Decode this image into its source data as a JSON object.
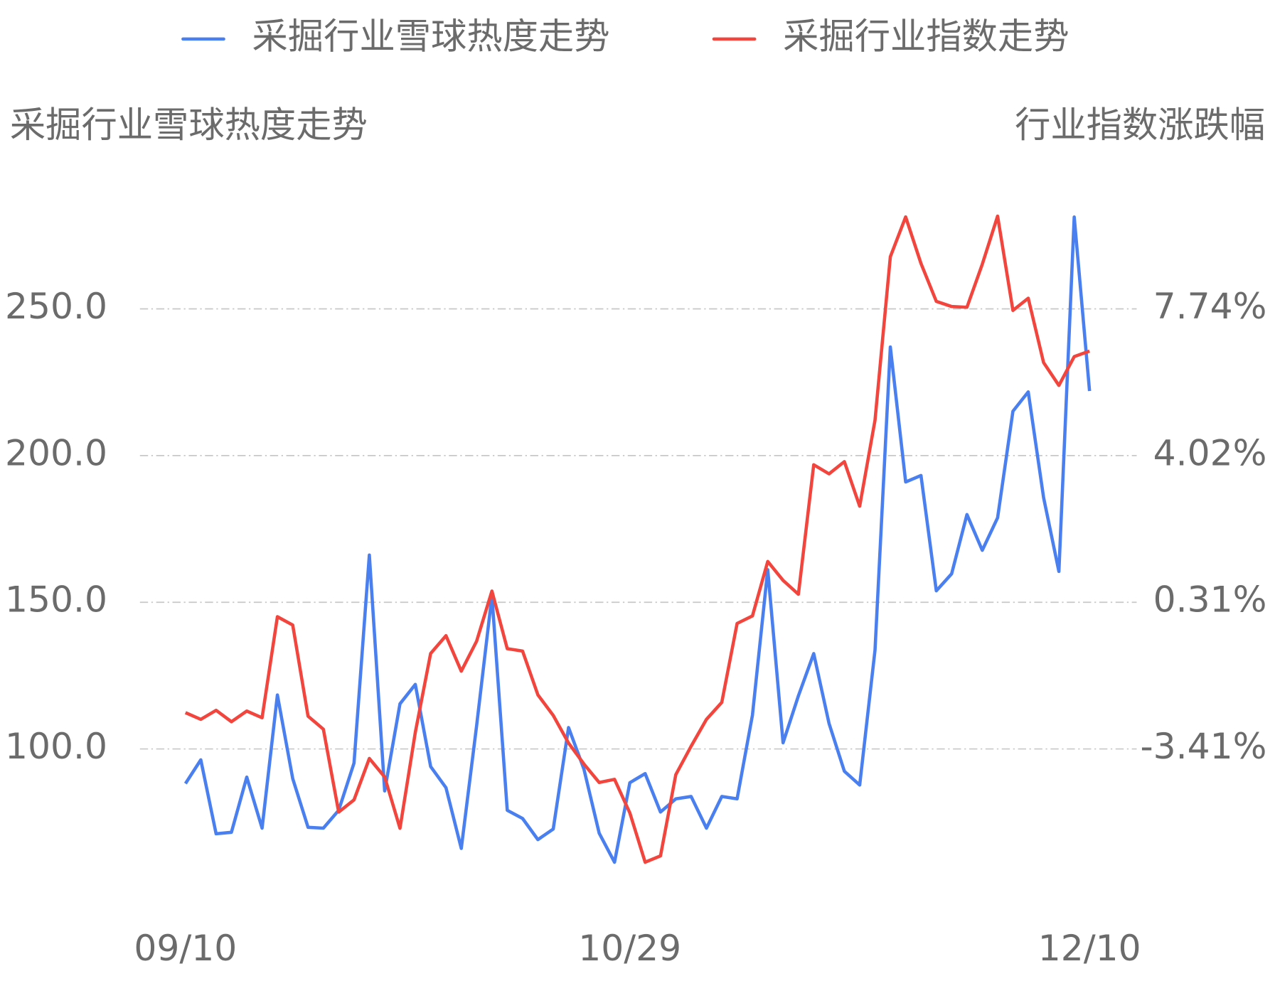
{
  "chart_data": {
    "type": "line",
    "ylabel": "采掘行业雪球热度走势",
    "y2label": "行业指数涨跌幅",
    "categories": [
      "09/10",
      null,
      null,
      null,
      null,
      null,
      null,
      null,
      null,
      null,
      null,
      null,
      null,
      null,
      null,
      null,
      null,
      null,
      null,
      null,
      null,
      null,
      null,
      null,
      null,
      null,
      null,
      null,
      null,
      "10/29",
      null,
      null,
      null,
      null,
      null,
      null,
      null,
      null,
      null,
      null,
      null,
      null,
      null,
      null,
      null,
      null,
      null,
      null,
      null,
      null,
      null,
      null,
      null,
      null,
      null,
      null,
      null,
      null,
      null,
      "12/10"
    ],
    "series": [
      {
        "name": "采掘行业雪球热度走势",
        "color": "#4a7ff0",
        "axis": "y",
        "values": [
          88.2,
          96.3,
          71.1,
          71.6,
          90.4,
          73.0,
          118.4,
          89.9,
          73.3,
          73.0,
          79.1,
          95.2,
          166.1,
          85.7,
          115.4,
          122.0,
          94.0,
          86.8,
          66.1,
          107.9,
          152.2,
          79.1,
          76.3,
          69.1,
          72.7,
          107.3,
          93.2,
          71.3,
          61.4,
          88.5,
          91.6,
          78.5,
          83.0,
          83.8,
          73.0,
          83.8,
          83.0,
          111.5,
          161.1,
          102.1,
          118.1,
          132.5,
          108.7,
          92.4,
          87.7,
          133.7,
          237.0,
          191.0,
          193.2,
          153.9,
          159.7,
          179.9,
          167.7,
          178.8,
          215.1,
          221.7,
          185.7,
          160.5,
          281.3,
          222.0
        ]
      },
      {
        "name": "采掘行业指数走势",
        "color": "#f2453d",
        "axis": "y2",
        "values": [
          -2.49,
          -2.66,
          -2.43,
          -2.72,
          -2.45,
          -2.62,
          -0.06,
          -0.27,
          -2.58,
          -2.91,
          -5.01,
          -4.7,
          -3.65,
          -4.12,
          -5.42,
          -2.99,
          -0.99,
          -0.54,
          -1.44,
          -0.68,
          0.59,
          -0.87,
          -0.93,
          -2.04,
          -2.56,
          -3.26,
          -3.79,
          -4.26,
          -4.18,
          -5.03,
          -6.28,
          -6.12,
          -4.06,
          -3.34,
          -2.66,
          -2.23,
          -0.23,
          -0.04,
          1.34,
          0.86,
          0.51,
          3.79,
          3.56,
          3.87,
          2.74,
          4.92,
          9.06,
          10.07,
          8.89,
          7.93,
          7.8,
          7.78,
          8.87,
          10.09,
          7.7,
          8.01,
          6.38,
          5.8,
          6.53,
          6.67
        ]
      }
    ],
    "ylim": [
      50,
      300
    ],
    "yticks": [
      {
        "value": 100,
        "label": "100.0"
      },
      {
        "value": 150,
        "label": "150.0"
      },
      {
        "value": 200,
        "label": "200.0"
      },
      {
        "value": 250,
        "label": "250.0"
      }
    ],
    "y2lim": [
      -7.127,
      11.457
    ],
    "y2ticks": [
      {
        "value": -3.41,
        "label": "-3.41%"
      },
      {
        "value": 0.31,
        "label": "0.31%"
      },
      {
        "value": 4.02,
        "label": "4.02%"
      },
      {
        "value": 7.74,
        "label": "7.74%"
      }
    ],
    "grid": true,
    "legend": "top"
  }
}
